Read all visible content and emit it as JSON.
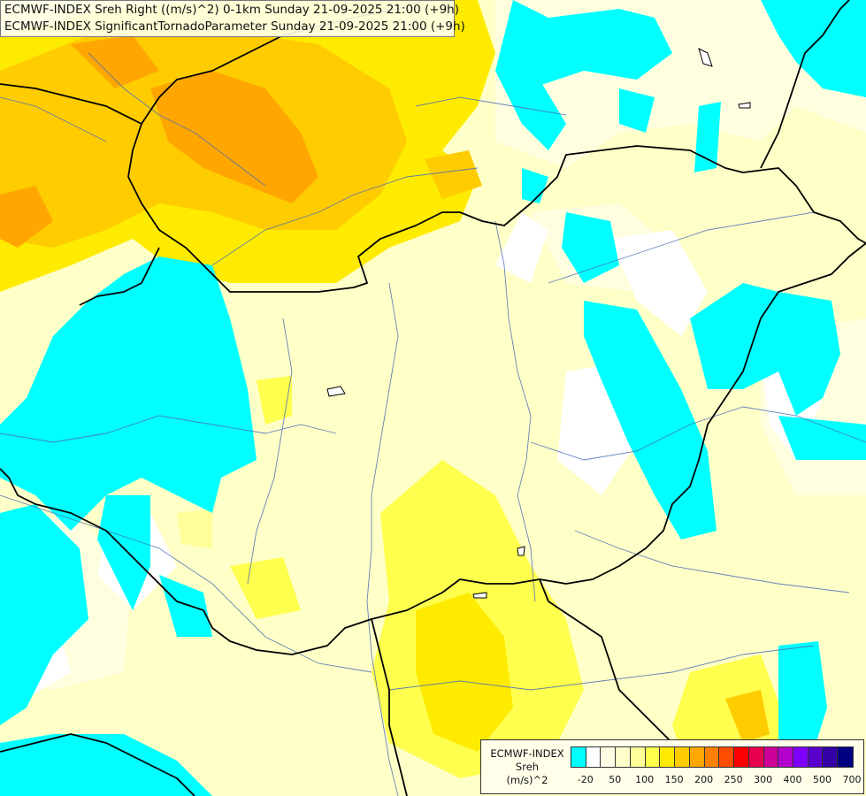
{
  "map": {
    "title_lines": [
      "ECMWF-INDEX Sreh Right ((m/s)^2) 0-1km Sunday 21-09-2025 21:00 (+9h)",
      "ECMWF-INDEX SignificantTornadoParameter Sunday 21-09-2025 21:00 (+9h)"
    ],
    "legend": {
      "title_lines": [
        "ECMWF-INDEX",
        "Sreh",
        "(m/s)^2"
      ],
      "colors": [
        "#00ffff",
        "#ffffff",
        "#ffffe6",
        "#ffffcc",
        "#ffff99",
        "#ffff4d",
        "#ffeb00",
        "#ffcc00",
        "#ffa600",
        "#ff8000",
        "#ff4d00",
        "#ff0000",
        "#e6004d",
        "#cc0099",
        "#b300cc",
        "#8000ff",
        "#5a00cc",
        "#3300a6",
        "#000080"
      ],
      "ticks": [
        {
          "label": "-20",
          "index": 1
        },
        {
          "label": "50",
          "index": 3
        },
        {
          "label": "100",
          "index": 5
        },
        {
          "label": "150",
          "index": 7
        },
        {
          "label": "200",
          "index": 9
        },
        {
          "label": "250",
          "index": 11
        },
        {
          "label": "300",
          "index": 13
        },
        {
          "label": "400",
          "index": 15
        },
        {
          "label": "500",
          "index": 17
        },
        {
          "label": "700",
          "index": 19
        }
      ]
    }
  }
}
